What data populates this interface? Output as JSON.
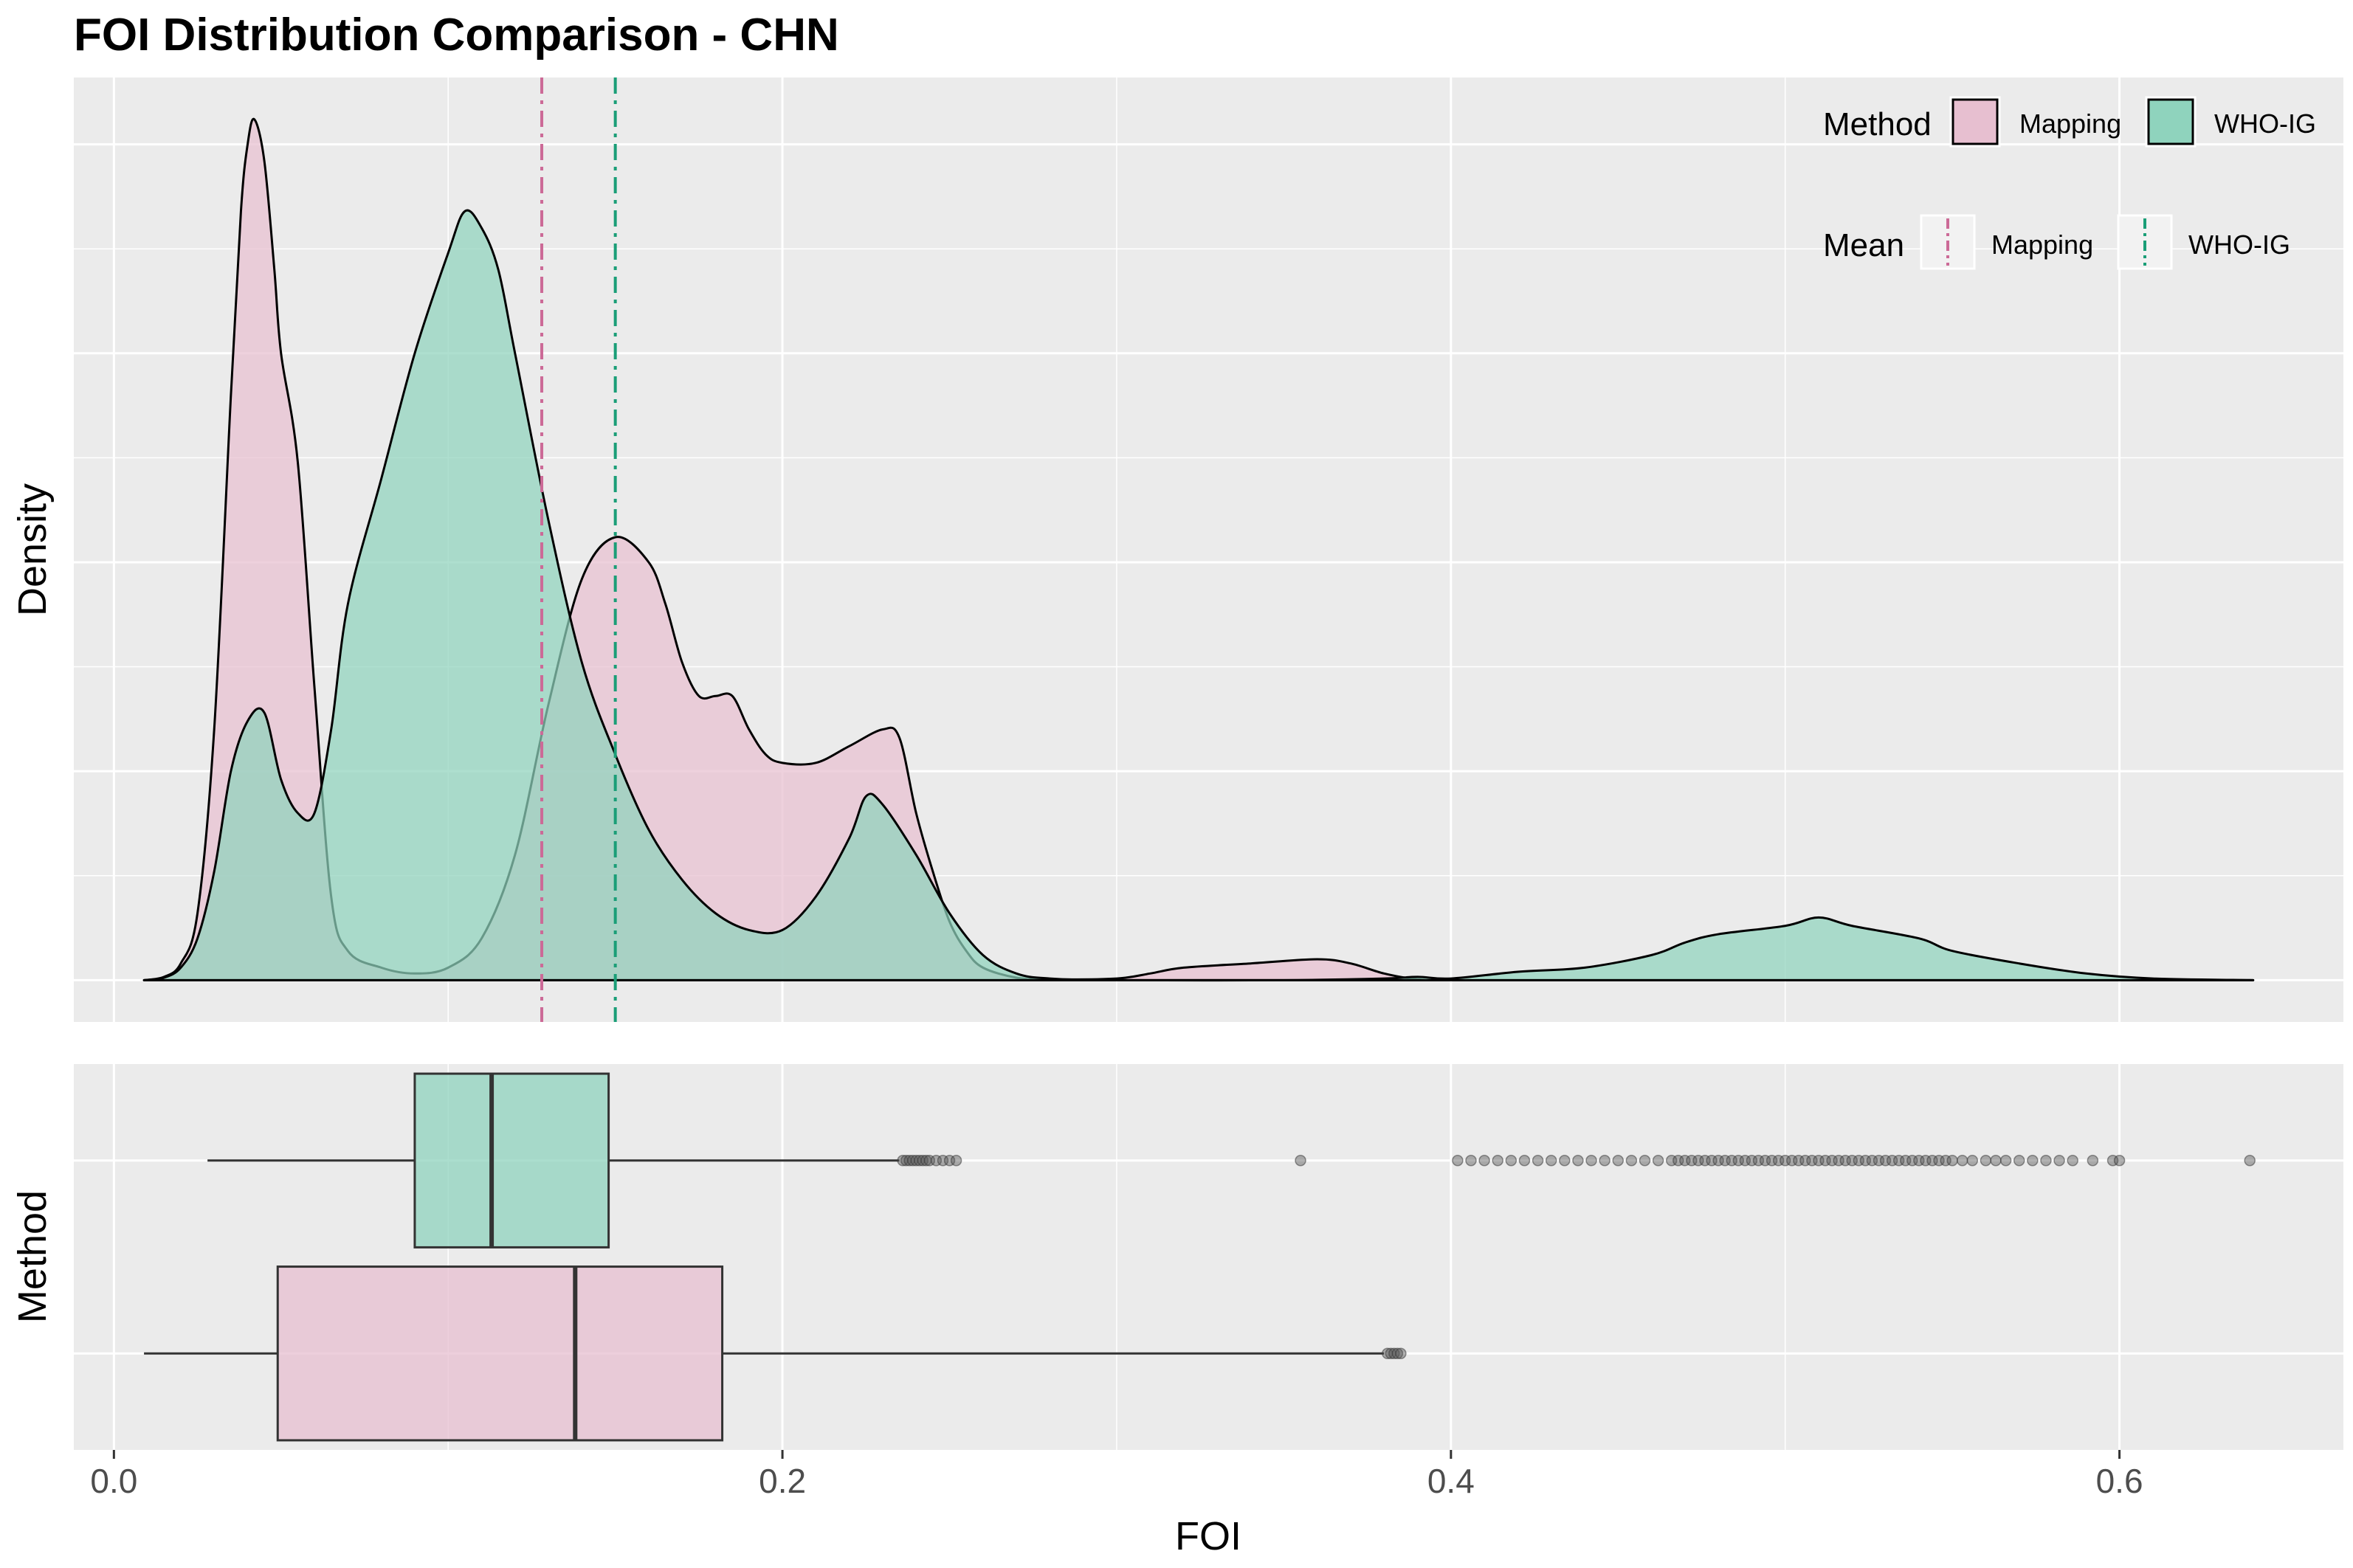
{
  "chart_data": {
    "type": "density+boxplot",
    "title": "FOI Distribution Comparison - CHN",
    "xlabel": "FOI",
    "ylabel_top": "Density",
    "ylabel_bottom": "Method",
    "xlim": [
      -0.012,
      0.667
    ],
    "x_ticks": [
      0.0,
      0.2,
      0.4,
      0.6
    ],
    "x_tick_labels": [
      "0.0",
      "0.2",
      "0.4",
      "0.6"
    ],
    "density_ylim": [
      -0.05,
      1.08
    ],
    "grid": true,
    "colors": {
      "panel": "#ebebeb",
      "grid": "#ffffff",
      "mapping_fill": "#e7bfd0",
      "whoig_fill": "#8fd3bd",
      "mapping_line": "#cc6a97",
      "whoig_line": "#1a9e77",
      "outline": "#000000",
      "outlier": "#555555"
    },
    "legend": {
      "placement": "top-right",
      "method_title": "Method",
      "mean_title": "Mean",
      "items": [
        "Mapping",
        "WHO-IG"
      ]
    },
    "density": [
      {
        "name": "Mapping",
        "points": [
          [
            0.009,
            0.0
          ],
          [
            0.015,
            0.004
          ],
          [
            0.02,
            0.02
          ],
          [
            0.025,
            0.08
          ],
          [
            0.03,
            0.3
          ],
          [
            0.035,
            0.7
          ],
          [
            0.038,
            0.92
          ],
          [
            0.04,
            1.0
          ],
          [
            0.042,
            1.03
          ],
          [
            0.045,
            0.98
          ],
          [
            0.048,
            0.85
          ],
          [
            0.05,
            0.75
          ],
          [
            0.055,
            0.62
          ],
          [
            0.06,
            0.35
          ],
          [
            0.065,
            0.1
          ],
          [
            0.07,
            0.035
          ],
          [
            0.08,
            0.015
          ],
          [
            0.09,
            0.008
          ],
          [
            0.1,
            0.015
          ],
          [
            0.11,
            0.05
          ],
          [
            0.12,
            0.15
          ],
          [
            0.13,
            0.33
          ],
          [
            0.14,
            0.48
          ],
          [
            0.15,
            0.53
          ],
          [
            0.16,
            0.5
          ],
          [
            0.165,
            0.45
          ],
          [
            0.17,
            0.38
          ],
          [
            0.175,
            0.34
          ],
          [
            0.18,
            0.34
          ],
          [
            0.185,
            0.34
          ],
          [
            0.19,
            0.3
          ],
          [
            0.195,
            0.27
          ],
          [
            0.2,
            0.26
          ],
          [
            0.21,
            0.26
          ],
          [
            0.22,
            0.28
          ],
          [
            0.23,
            0.3
          ],
          [
            0.235,
            0.29
          ],
          [
            0.24,
            0.2
          ],
          [
            0.245,
            0.13
          ],
          [
            0.25,
            0.07
          ],
          [
            0.255,
            0.035
          ],
          [
            0.26,
            0.015
          ],
          [
            0.27,
            0.003
          ],
          [
            0.28,
            0.001
          ],
          [
            0.3,
            0.002
          ],
          [
            0.31,
            0.008
          ],
          [
            0.32,
            0.015
          ],
          [
            0.34,
            0.02
          ],
          [
            0.36,
            0.025
          ],
          [
            0.37,
            0.02
          ],
          [
            0.38,
            0.008
          ],
          [
            0.39,
            0.001
          ],
          [
            0.4,
            0.0
          ],
          [
            0.45,
            0.0
          ],
          [
            0.5,
            0.0
          ],
          [
            0.55,
            0.0
          ],
          [
            0.6,
            0.0
          ],
          [
            0.64,
            0.0
          ]
        ]
      },
      {
        "name": "WHO-IG",
        "points": [
          [
            0.009,
            0.0
          ],
          [
            0.015,
            0.003
          ],
          [
            0.02,
            0.015
          ],
          [
            0.025,
            0.05
          ],
          [
            0.03,
            0.13
          ],
          [
            0.035,
            0.25
          ],
          [
            0.04,
            0.31
          ],
          [
            0.045,
            0.32
          ],
          [
            0.05,
            0.24
          ],
          [
            0.055,
            0.2
          ],
          [
            0.06,
            0.2
          ],
          [
            0.065,
            0.3
          ],
          [
            0.07,
            0.45
          ],
          [
            0.08,
            0.6
          ],
          [
            0.09,
            0.75
          ],
          [
            0.1,
            0.87
          ],
          [
            0.105,
            0.92
          ],
          [
            0.11,
            0.9
          ],
          [
            0.115,
            0.85
          ],
          [
            0.12,
            0.75
          ],
          [
            0.13,
            0.55
          ],
          [
            0.14,
            0.38
          ],
          [
            0.15,
            0.27
          ],
          [
            0.16,
            0.18
          ],
          [
            0.17,
            0.12
          ],
          [
            0.18,
            0.08
          ],
          [
            0.19,
            0.06
          ],
          [
            0.2,
            0.06
          ],
          [
            0.21,
            0.1
          ],
          [
            0.22,
            0.17
          ],
          [
            0.225,
            0.22
          ],
          [
            0.23,
            0.21
          ],
          [
            0.24,
            0.15
          ],
          [
            0.25,
            0.08
          ],
          [
            0.26,
            0.03
          ],
          [
            0.27,
            0.008
          ],
          [
            0.28,
            0.002
          ],
          [
            0.3,
            0.0
          ],
          [
            0.35,
            0.0
          ],
          [
            0.38,
            0.002
          ],
          [
            0.39,
            0.004
          ],
          [
            0.4,
            0.002
          ],
          [
            0.42,
            0.01
          ],
          [
            0.44,
            0.015
          ],
          [
            0.46,
            0.03
          ],
          [
            0.47,
            0.045
          ],
          [
            0.48,
            0.055
          ],
          [
            0.5,
            0.065
          ],
          [
            0.51,
            0.075
          ],
          [
            0.52,
            0.065
          ],
          [
            0.54,
            0.05
          ],
          [
            0.55,
            0.035
          ],
          [
            0.57,
            0.02
          ],
          [
            0.59,
            0.008
          ],
          [
            0.61,
            0.002
          ],
          [
            0.64,
            0.0
          ]
        ]
      }
    ],
    "means": [
      {
        "name": "Mapping",
        "x": 0.128
      },
      {
        "name": "WHO-IG",
        "x": 0.15
      }
    ],
    "boxplot": [
      {
        "name": "WHO-IG",
        "whisker_low": 0.028,
        "q1": 0.09,
        "median": 0.113,
        "q3": 0.148,
        "whisker_high": 0.235,
        "outliers": [
          0.236,
          0.237,
          0.238,
          0.239,
          0.24,
          0.241,
          0.242,
          0.243,
          0.244,
          0.246,
          0.248,
          0.25,
          0.252,
          0.355,
          0.402,
          0.406,
          0.41,
          0.414,
          0.418,
          0.422,
          0.426,
          0.43,
          0.434,
          0.438,
          0.442,
          0.446,
          0.45,
          0.454,
          0.458,
          0.462,
          0.466,
          0.468,
          0.47,
          0.472,
          0.474,
          0.476,
          0.478,
          0.48,
          0.482,
          0.484,
          0.486,
          0.488,
          0.49,
          0.492,
          0.494,
          0.496,
          0.498,
          0.5,
          0.502,
          0.504,
          0.506,
          0.508,
          0.51,
          0.512,
          0.514,
          0.516,
          0.518,
          0.52,
          0.522,
          0.524,
          0.526,
          0.528,
          0.53,
          0.532,
          0.534,
          0.536,
          0.538,
          0.54,
          0.542,
          0.544,
          0.546,
          0.548,
          0.55,
          0.553,
          0.556,
          0.56,
          0.563,
          0.566,
          0.57,
          0.574,
          0.578,
          0.582,
          0.586,
          0.592,
          0.598,
          0.6,
          0.639
        ]
      },
      {
        "name": "Mapping",
        "whisker_low": 0.009,
        "q1": 0.049,
        "median": 0.138,
        "q3": 0.182,
        "whisker_high": 0.38,
        "outliers": [
          0.381,
          0.382,
          0.383,
          0.384,
          0.385
        ]
      }
    ]
  }
}
